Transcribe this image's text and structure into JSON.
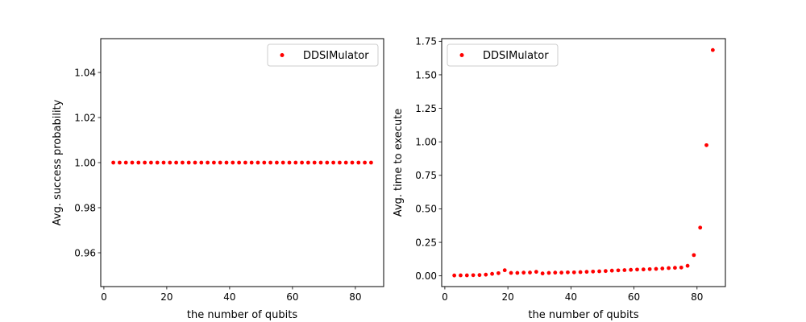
{
  "chart_data": [
    {
      "type": "scatter",
      "xlabel": "the number of qubits",
      "ylabel": "Avg. success probability",
      "xlim": [
        -1,
        89
      ],
      "ylim": [
        0.945,
        1.055
      ],
      "xticks": [
        0,
        20,
        40,
        60,
        80
      ],
      "yticks": [
        0.96,
        0.98,
        1.0,
        1.02,
        1.04
      ],
      "ytick_labels": [
        "0.96",
        "0.98",
        "1.00",
        "1.02",
        "1.04"
      ],
      "legend_position": "upper right",
      "grid": false,
      "series": [
        {
          "name": "DDSIMulator",
          "color": "#ff0000",
          "x": [
            3,
            5,
            7,
            9,
            11,
            13,
            15,
            17,
            19,
            21,
            23,
            25,
            27,
            29,
            31,
            33,
            35,
            37,
            39,
            41,
            43,
            45,
            47,
            49,
            51,
            53,
            55,
            57,
            59,
            61,
            63,
            65,
            67,
            69,
            71,
            73,
            75,
            77,
            79,
            81,
            83,
            85
          ],
          "y": [
            1,
            1,
            1,
            1,
            1,
            1,
            1,
            1,
            1,
            1,
            1,
            1,
            1,
            1,
            1,
            1,
            1,
            1,
            1,
            1,
            1,
            1,
            1,
            1,
            1,
            1,
            1,
            1,
            1,
            1,
            1,
            1,
            1,
            1,
            1,
            1,
            1,
            1,
            1,
            1,
            1,
            1
          ]
        }
      ]
    },
    {
      "type": "scatter",
      "xlabel": "the number of qubits",
      "ylabel": "Avg. time to execute",
      "xlim": [
        -1,
        89
      ],
      "ylim": [
        -0.08,
        1.77
      ],
      "xticks": [
        0,
        20,
        40,
        60,
        80
      ],
      "yticks": [
        0,
        0.25,
        0.5,
        0.75,
        1.0,
        1.25,
        1.5,
        1.75
      ],
      "ytick_labels": [
        "0.00",
        "0.25",
        "0.50",
        "0.75",
        "1.00",
        "1.25",
        "1.50",
        "1.75"
      ],
      "legend_position": "upper left",
      "grid": false,
      "series": [
        {
          "name": "DDSIMulator",
          "color": "#ff0000",
          "x": [
            3,
            5,
            7,
            9,
            11,
            13,
            15,
            17,
            19,
            21,
            23,
            25,
            27,
            29,
            31,
            33,
            35,
            37,
            39,
            41,
            43,
            45,
            47,
            49,
            51,
            53,
            55,
            57,
            59,
            61,
            63,
            65,
            67,
            69,
            71,
            73,
            75,
            77,
            79,
            81,
            83,
            85
          ],
          "y": [
            0.003,
            0.004,
            0.004,
            0.005,
            0.006,
            0.009,
            0.015,
            0.02,
            0.042,
            0.022,
            0.022,
            0.024,
            0.025,
            0.03,
            0.018,
            0.022,
            0.024,
            0.024,
            0.026,
            0.026,
            0.028,
            0.03,
            0.032,
            0.034,
            0.036,
            0.039,
            0.041,
            0.043,
            0.045,
            0.047,
            0.048,
            0.05,
            0.052,
            0.055,
            0.058,
            0.06,
            0.062,
            0.075,
            0.155,
            0.36,
            0.975,
            1.685
          ]
        }
      ]
    }
  ]
}
